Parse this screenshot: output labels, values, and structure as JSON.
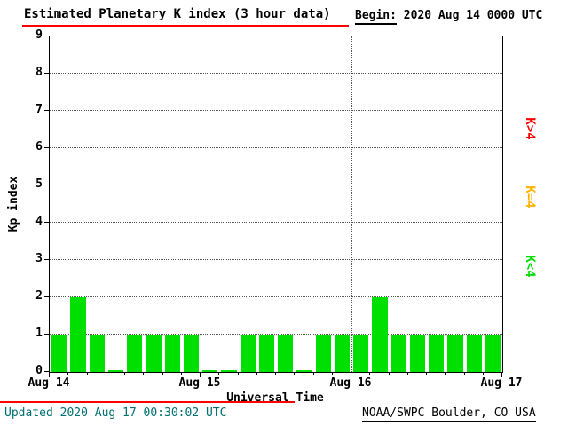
{
  "header": {
    "title": "Estimated Planetary K index (3 hour data)",
    "begin_label": "Begin:",
    "begin_value": "2020 Aug 14 0000 UTC"
  },
  "footer": {
    "updated": "Updated 2020 Aug 17 00:30:02 UTC",
    "source": "NOAA/SWPC Boulder, CO USA",
    "updated_color": "#007070"
  },
  "chart_data": {
    "type": "bar",
    "title": "Estimated Planetary K index (3 hour data)",
    "xlabel": "Universal Time",
    "ylabel": "Kp index",
    "ylim": [
      0,
      9
    ],
    "y_ticks": [
      0,
      1,
      2,
      3,
      4,
      5,
      6,
      7,
      8,
      9
    ],
    "x_tick_labels": [
      "Aug 14",
      "Aug 15",
      "Aug 16",
      "Aug 17"
    ],
    "bars_per_day": 8,
    "interval_hours": 3,
    "x": [
      "Aug 14 0000",
      "Aug 14 0300",
      "Aug 14 0600",
      "Aug 14 0900",
      "Aug 14 1200",
      "Aug 14 1500",
      "Aug 14 1800",
      "Aug 14 2100",
      "Aug 15 0000",
      "Aug 15 0300",
      "Aug 15 0600",
      "Aug 15 0900",
      "Aug 15 1200",
      "Aug 15 1500",
      "Aug 15 1800",
      "Aug 15 2100",
      "Aug 16 0000",
      "Aug 16 0300",
      "Aug 16 0600",
      "Aug 16 0900",
      "Aug 16 1200",
      "Aug 16 1500",
      "Aug 16 1800",
      "Aug 16 2100"
    ],
    "values": [
      1,
      2,
      1,
      0,
      1,
      1,
      1,
      1,
      0,
      0,
      1,
      1,
      1,
      0,
      1,
      1,
      1,
      2,
      1,
      1,
      1,
      1,
      1,
      1
    ],
    "colors": {
      "below4": "#00e000",
      "equal4": "#ffb300",
      "above4": "#ff0000"
    },
    "legend": [
      {
        "label": "K>4",
        "color": "#ff0000"
      },
      {
        "label": "K=4",
        "color": "#ffb300"
      },
      {
        "label": "K<4",
        "color": "#00e000"
      }
    ],
    "grid": "dotted horizontal lines at each integer Kp, dotted vertical lines at day boundaries",
    "legend_position": "right"
  },
  "accent": {
    "rule_red": "#ff0000"
  }
}
